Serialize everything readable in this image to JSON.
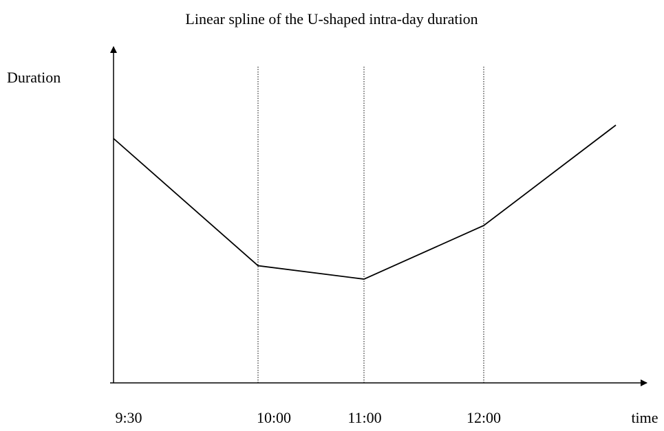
{
  "chart_data": {
    "type": "line",
    "title": "Linear spline of the U-shaped intra-day duration",
    "y_label": "Duration",
    "x_label": "time",
    "categories": [
      "9:30",
      "10:00",
      "11:00",
      "12:00",
      null
    ],
    "values": [
      73,
      35,
      31,
      47,
      77
    ],
    "color": "#000000",
    "ylim": [
      0,
      100
    ]
  }
}
